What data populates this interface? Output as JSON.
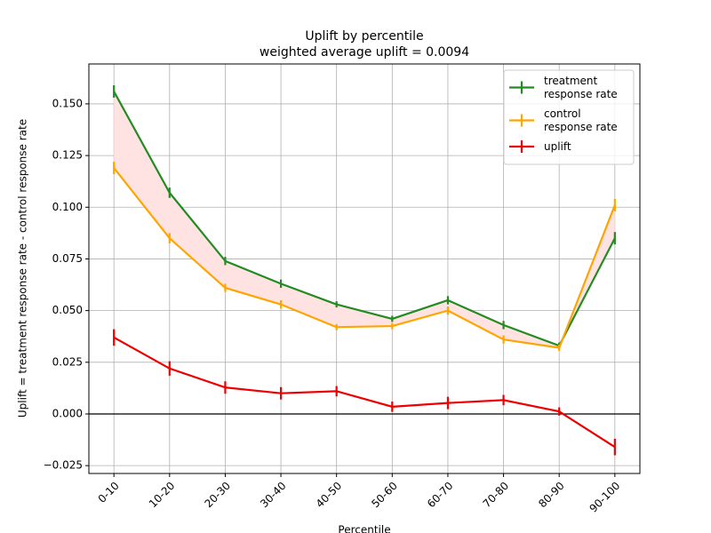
{
  "chart_data": {
    "type": "line",
    "title": "Uplift by percentile",
    "subtitle": "weighted average uplift = 0.0094",
    "x_label": "Percentile",
    "y_label": "Uplift = treatment response rate - control response rate",
    "categories": [
      "0-10",
      "10-20",
      "20-30",
      "30-40",
      "40-50",
      "50-60",
      "60-70",
      "70-80",
      "80-90",
      "90-100"
    ],
    "series": [
      {
        "name": "treatment\nresponse rate",
        "color": "#228b22",
        "values": [
          0.156,
          0.107,
          0.074,
          0.063,
          0.053,
          0.046,
          0.055,
          0.043,
          0.033,
          0.085
        ],
        "errors": [
          0.003,
          0.0025,
          0.002,
          0.002,
          0.0015,
          0.0015,
          0.002,
          0.002,
          0.0015,
          0.003
        ]
      },
      {
        "name": "control\nresponse rate",
        "color": "#ffa500",
        "values": [
          0.119,
          0.085,
          0.061,
          0.053,
          0.042,
          0.0425,
          0.05,
          0.036,
          0.032,
          0.101
        ],
        "errors": [
          0.003,
          0.0025,
          0.002,
          0.002,
          0.0015,
          0.0015,
          0.002,
          0.002,
          0.0015,
          0.003
        ]
      },
      {
        "name": "uplift",
        "color": "#ee0000",
        "values": [
          0.037,
          0.022,
          0.0128,
          0.01,
          0.011,
          0.0035,
          0.0053,
          0.0067,
          0.0012,
          -0.016
        ],
        "errors": [
          0.004,
          0.0035,
          0.003,
          0.003,
          0.0025,
          0.0025,
          0.003,
          0.0025,
          0.002,
          0.004
        ]
      }
    ],
    "fill_between_color": "#ffe3e3",
    "axhline": 0,
    "xlim": [
      -0.45,
      9.45
    ],
    "ylim": [
      -0.0288,
      0.1693
    ],
    "yticks": [
      {
        "value": -0.025,
        "label": "−0.025"
      },
      {
        "value": 0,
        "label": "0.000"
      },
      {
        "value": 0.025,
        "label": "0.025"
      },
      {
        "value": 0.05,
        "label": "0.050"
      },
      {
        "value": 0.075,
        "label": "0.075"
      },
      {
        "value": 0.1,
        "label": "0.100"
      },
      {
        "value": 0.125,
        "label": "0.125"
      },
      {
        "value": 0.15,
        "label": "0.150"
      }
    ],
    "grid": true,
    "legend": "upper right"
  }
}
